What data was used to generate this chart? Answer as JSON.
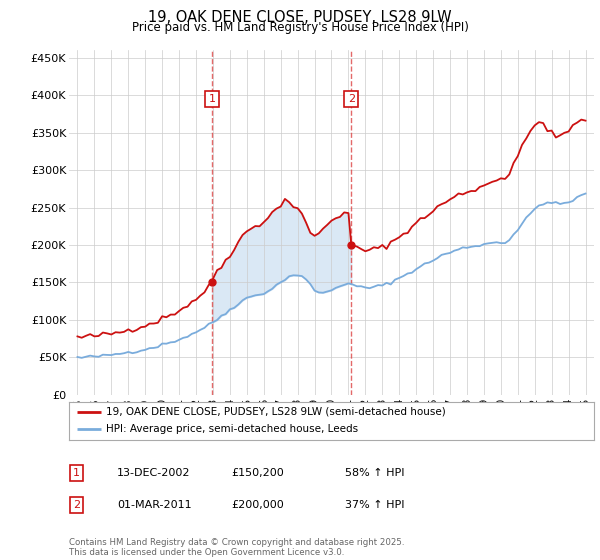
{
  "title": "19, OAK DENE CLOSE, PUDSEY, LS28 9LW",
  "subtitle": "Price paid vs. HM Land Registry's House Price Index (HPI)",
  "xlim": [
    1994.5,
    2025.5
  ],
  "ylim": [
    0,
    460000
  ],
  "yticks": [
    0,
    50000,
    100000,
    150000,
    200000,
    250000,
    300000,
    350000,
    400000,
    450000
  ],
  "ytick_labels": [
    "£0",
    "£50K",
    "£100K",
    "£150K",
    "£200K",
    "£250K",
    "£300K",
    "£350K",
    "£400K",
    "£450K"
  ],
  "xticks": [
    1995,
    1996,
    1997,
    1998,
    1999,
    2000,
    2001,
    2002,
    2003,
    2004,
    2005,
    2006,
    2007,
    2008,
    2009,
    2010,
    2011,
    2012,
    2013,
    2014,
    2015,
    2016,
    2017,
    2018,
    2019,
    2020,
    2021,
    2022,
    2023,
    2024,
    2025
  ],
  "purchase1_x": 2002.95,
  "purchase1_y": 150200,
  "purchase1_label": "1",
  "purchase1_marker_y": 395000,
  "purchase2_x": 2011.17,
  "purchase2_y": 200000,
  "purchase2_label": "2",
  "purchase2_marker_y": 395000,
  "vline1_x": 2002.95,
  "vline2_x": 2011.17,
  "hpi_color": "#7aacdc",
  "price_color": "#cc1111",
  "vline_color": "#dd4444",
  "shade_color": "#dae8f5",
  "legend_label_price": "19, OAK DENE CLOSE, PUDSEY, LS28 9LW (semi-detached house)",
  "legend_label_hpi": "HPI: Average price, semi-detached house, Leeds",
  "table_rows": [
    {
      "num": "1",
      "date": "13-DEC-2002",
      "price": "£150,200",
      "hpi": "58% ↑ HPI"
    },
    {
      "num": "2",
      "date": "01-MAR-2011",
      "price": "£200,000",
      "hpi": "37% ↑ HPI"
    }
  ],
  "footer": "Contains HM Land Registry data © Crown copyright and database right 2025.\nThis data is licensed under the Open Government Licence v3.0.",
  "bg_color": "#ffffff",
  "plot_bg_color": "#ffffff",
  "hpi_points": [
    [
      1995.0,
      50000
    ],
    [
      1995.25,
      49500
    ],
    [
      1995.5,
      50200
    ],
    [
      1995.75,
      50800
    ],
    [
      1996.0,
      51500
    ],
    [
      1996.25,
      51000
    ],
    [
      1996.5,
      52000
    ],
    [
      1996.75,
      52500
    ],
    [
      1997.0,
      53500
    ],
    [
      1997.25,
      54000
    ],
    [
      1997.5,
      55000
    ],
    [
      1997.75,
      56000
    ],
    [
      1998.0,
      57000
    ],
    [
      1998.25,
      57500
    ],
    [
      1998.5,
      58500
    ],
    [
      1998.75,
      59500
    ],
    [
      1999.0,
      61000
    ],
    [
      1999.25,
      62000
    ],
    [
      1999.5,
      63500
    ],
    [
      1999.75,
      65000
    ],
    [
      2000.0,
      67000
    ],
    [
      2000.25,
      68500
    ],
    [
      2000.5,
      70000
    ],
    [
      2000.75,
      72000
    ],
    [
      2001.0,
      74000
    ],
    [
      2001.25,
      76000
    ],
    [
      2001.5,
      78500
    ],
    [
      2001.75,
      81000
    ],
    [
      2002.0,
      84000
    ],
    [
      2002.25,
      87000
    ],
    [
      2002.5,
      90000
    ],
    [
      2002.75,
      93000
    ],
    [
      2003.0,
      97000
    ],
    [
      2003.25,
      101000
    ],
    [
      2003.5,
      105000
    ],
    [
      2003.75,
      109000
    ],
    [
      2004.0,
      114000
    ],
    [
      2004.25,
      118000
    ],
    [
      2004.5,
      122000
    ],
    [
      2004.75,
      126000
    ],
    [
      2005.0,
      129000
    ],
    [
      2005.25,
      131000
    ],
    [
      2005.5,
      133000
    ],
    [
      2005.75,
      134000
    ],
    [
      2006.0,
      136000
    ],
    [
      2006.25,
      139000
    ],
    [
      2006.5,
      142000
    ],
    [
      2006.75,
      146000
    ],
    [
      2007.0,
      150000
    ],
    [
      2007.25,
      155000
    ],
    [
      2007.5,
      158000
    ],
    [
      2007.75,
      160000
    ],
    [
      2008.0,
      160000
    ],
    [
      2008.25,
      158000
    ],
    [
      2008.5,
      153000
    ],
    [
      2008.75,
      147000
    ],
    [
      2009.0,
      140000
    ],
    [
      2009.25,
      137000
    ],
    [
      2009.5,
      136000
    ],
    [
      2009.75,
      137000
    ],
    [
      2010.0,
      140000
    ],
    [
      2010.25,
      143000
    ],
    [
      2010.5,
      146000
    ],
    [
      2010.75,
      148000
    ],
    [
      2011.0,
      148000
    ],
    [
      2011.25,
      146000
    ],
    [
      2011.5,
      145000
    ],
    [
      2011.75,
      144000
    ],
    [
      2012.0,
      143000
    ],
    [
      2012.25,
      143000
    ],
    [
      2012.5,
      144000
    ],
    [
      2012.75,
      145000
    ],
    [
      2013.0,
      146000
    ],
    [
      2013.25,
      148000
    ],
    [
      2013.5,
      150000
    ],
    [
      2013.75,
      153000
    ],
    [
      2014.0,
      156000
    ],
    [
      2014.25,
      159000
    ],
    [
      2014.5,
      162000
    ],
    [
      2014.75,
      165000
    ],
    [
      2015.0,
      168000
    ],
    [
      2015.25,
      171000
    ],
    [
      2015.5,
      174000
    ],
    [
      2015.75,
      177000
    ],
    [
      2016.0,
      180000
    ],
    [
      2016.25,
      183000
    ],
    [
      2016.5,
      186000
    ],
    [
      2016.75,
      188000
    ],
    [
      2017.0,
      190000
    ],
    [
      2017.25,
      192000
    ],
    [
      2017.5,
      194000
    ],
    [
      2017.75,
      196000
    ],
    [
      2018.0,
      197000
    ],
    [
      2018.25,
      198000
    ],
    [
      2018.5,
      199000
    ],
    [
      2018.75,
      200000
    ],
    [
      2019.0,
      201000
    ],
    [
      2019.25,
      202000
    ],
    [
      2019.5,
      203000
    ],
    [
      2019.75,
      204000
    ],
    [
      2020.0,
      204000
    ],
    [
      2020.25,
      203000
    ],
    [
      2020.5,
      207000
    ],
    [
      2020.75,
      215000
    ],
    [
      2021.0,
      220000
    ],
    [
      2021.25,
      228000
    ],
    [
      2021.5,
      235000
    ],
    [
      2021.75,
      242000
    ],
    [
      2022.0,
      248000
    ],
    [
      2022.25,
      253000
    ],
    [
      2022.5,
      256000
    ],
    [
      2022.75,
      257000
    ],
    [
      2023.0,
      256000
    ],
    [
      2023.25,
      255000
    ],
    [
      2023.5,
      255000
    ],
    [
      2023.75,
      256000
    ],
    [
      2024.0,
      257000
    ],
    [
      2024.25,
      260000
    ],
    [
      2024.5,
      263000
    ],
    [
      2024.75,
      266000
    ],
    [
      2025.0,
      268000
    ]
  ],
  "price_points": [
    [
      1995.0,
      77000
    ],
    [
      1995.25,
      76500
    ],
    [
      1995.5,
      77500
    ],
    [
      1995.75,
      78000
    ],
    [
      1996.0,
      78500
    ],
    [
      1996.25,
      79000
    ],
    [
      1996.5,
      80000
    ],
    [
      1996.75,
      80500
    ],
    [
      1997.0,
      81500
    ],
    [
      1997.25,
      82500
    ],
    [
      1997.5,
      84000
    ],
    [
      1997.75,
      85000
    ],
    [
      1998.0,
      87000
    ],
    [
      1998.25,
      88000
    ],
    [
      1998.5,
      90000
    ],
    [
      1998.75,
      91500
    ],
    [
      1999.0,
      93000
    ],
    [
      1999.25,
      94500
    ],
    [
      1999.5,
      97000
    ],
    [
      1999.75,
      99000
    ],
    [
      2000.0,
      102000
    ],
    [
      2000.25,
      104000
    ],
    [
      2000.5,
      107000
    ],
    [
      2000.75,
      110000
    ],
    [
      2001.0,
      113000
    ],
    [
      2001.25,
      116000
    ],
    [
      2001.5,
      120000
    ],
    [
      2001.75,
      124000
    ],
    [
      2002.0,
      128000
    ],
    [
      2002.25,
      133000
    ],
    [
      2002.5,
      138000
    ],
    [
      2002.75,
      143000
    ],
    [
      2002.95,
      150200
    ],
    [
      2003.0,
      157000
    ],
    [
      2003.25,
      165000
    ],
    [
      2003.5,
      172000
    ],
    [
      2003.75,
      180000
    ],
    [
      2004.0,
      188000
    ],
    [
      2004.25,
      196000
    ],
    [
      2004.5,
      204000
    ],
    [
      2004.75,
      212000
    ],
    [
      2005.0,
      218000
    ],
    [
      2005.25,
      222000
    ],
    [
      2005.5,
      226000
    ],
    [
      2005.75,
      228000
    ],
    [
      2006.0,
      232000
    ],
    [
      2006.25,
      237000
    ],
    [
      2006.5,
      242000
    ],
    [
      2006.75,
      248000
    ],
    [
      2007.0,
      255000
    ],
    [
      2007.25,
      261000
    ],
    [
      2007.5,
      258000
    ],
    [
      2007.75,
      252000
    ],
    [
      2008.0,
      248000
    ],
    [
      2008.25,
      240000
    ],
    [
      2008.5,
      228000
    ],
    [
      2008.75,
      218000
    ],
    [
      2009.0,
      213000
    ],
    [
      2009.25,
      215000
    ],
    [
      2009.5,
      220000
    ],
    [
      2009.75,
      228000
    ],
    [
      2010.0,
      233000
    ],
    [
      2010.25,
      238000
    ],
    [
      2010.5,
      240000
    ],
    [
      2010.75,
      242000
    ],
    [
      2011.0,
      240000
    ],
    [
      2011.17,
      200000
    ],
    [
      2011.5,
      196000
    ],
    [
      2011.75,
      194000
    ],
    [
      2012.0,
      193000
    ],
    [
      2012.25,
      193000
    ],
    [
      2012.5,
      194000
    ],
    [
      2012.75,
      196000
    ],
    [
      2013.0,
      197000
    ],
    [
      2013.25,
      200000
    ],
    [
      2013.5,
      203000
    ],
    [
      2013.75,
      207000
    ],
    [
      2014.0,
      211000
    ],
    [
      2014.25,
      215000
    ],
    [
      2014.5,
      220000
    ],
    [
      2014.75,
      225000
    ],
    [
      2015.0,
      229000
    ],
    [
      2015.25,
      233000
    ],
    [
      2015.5,
      237000
    ],
    [
      2015.75,
      242000
    ],
    [
      2016.0,
      246000
    ],
    [
      2016.25,
      250000
    ],
    [
      2016.5,
      254000
    ],
    [
      2016.75,
      258000
    ],
    [
      2017.0,
      260000
    ],
    [
      2017.25,
      264000
    ],
    [
      2017.5,
      267000
    ],
    [
      2017.75,
      269000
    ],
    [
      2018.0,
      271000
    ],
    [
      2018.25,
      273000
    ],
    [
      2018.5,
      275000
    ],
    [
      2018.75,
      277000
    ],
    [
      2019.0,
      279000
    ],
    [
      2019.25,
      282000
    ],
    [
      2019.5,
      285000
    ],
    [
      2019.75,
      289000
    ],
    [
      2020.0,
      290000
    ],
    [
      2020.25,
      289000
    ],
    [
      2020.5,
      296000
    ],
    [
      2020.75,
      310000
    ],
    [
      2021.0,
      318000
    ],
    [
      2021.25,
      330000
    ],
    [
      2021.5,
      342000
    ],
    [
      2021.75,
      352000
    ],
    [
      2022.0,
      360000
    ],
    [
      2022.25,
      368000
    ],
    [
      2022.5,
      363000
    ],
    [
      2022.75,
      352000
    ],
    [
      2023.0,
      348000
    ],
    [
      2023.25,
      344000
    ],
    [
      2023.5,
      346000
    ],
    [
      2023.75,
      350000
    ],
    [
      2024.0,
      354000
    ],
    [
      2024.25,
      358000
    ],
    [
      2024.5,
      362000
    ],
    [
      2024.75,
      366000
    ],
    [
      2025.0,
      368000
    ]
  ]
}
